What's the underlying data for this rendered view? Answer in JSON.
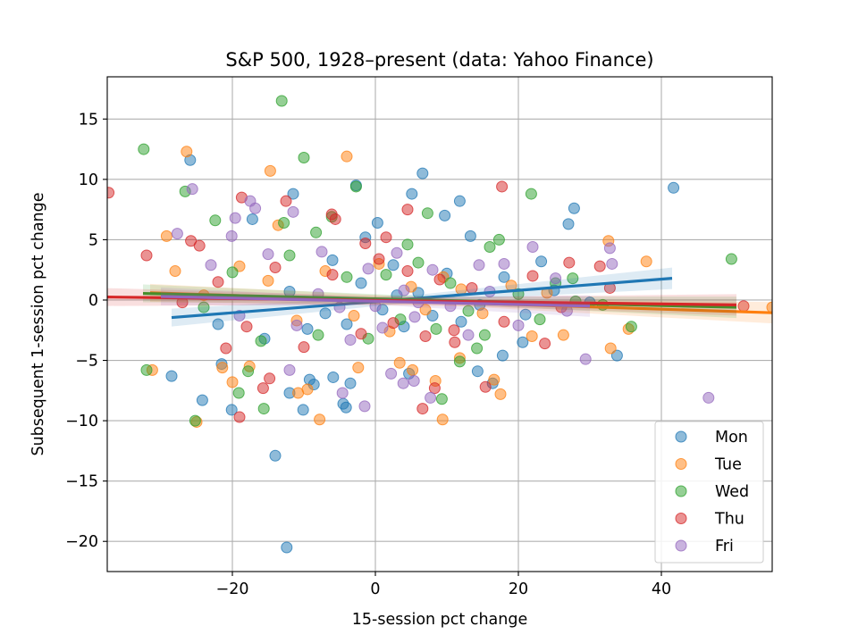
{
  "chart_data": {
    "type": "scatter",
    "title": "S&P 500, 1928–present (data: Yahoo Finance)",
    "xlabel": "15-session pct change",
    "ylabel": "Subsequent 1-session pct change",
    "xlim": [
      -37.5,
      55.5
    ],
    "ylim": [
      -22.5,
      18.5
    ],
    "xticks": [
      -20,
      0,
      20,
      40
    ],
    "yticks": [
      -20,
      -15,
      -10,
      -5,
      0,
      5,
      10,
      15
    ],
    "xtick_labels": [
      "−20",
      "0",
      "20",
      "40"
    ],
    "ytick_labels": [
      "−20",
      "−15",
      "−10",
      "−5",
      "0",
      "5",
      "10",
      "15"
    ],
    "grid": true,
    "legend_position": "lower-right",
    "series": [
      {
        "name": "Mon",
        "color": "#1f77b4",
        "regression": {
          "x": [
            -28.5,
            41.5
          ],
          "y": [
            -1.45,
            1.8
          ]
        },
        "points": [
          [
            -28.5,
            -6.3
          ],
          [
            -25.9,
            11.6
          ],
          [
            -24.2,
            -8.3
          ],
          [
            -20.1,
            -9.1
          ],
          [
            -21.5,
            -5.3
          ],
          [
            -17.2,
            6.7
          ],
          [
            -14.0,
            -12.9
          ],
          [
            -12.4,
            -20.5
          ],
          [
            -12.0,
            -7.7
          ],
          [
            -11.5,
            8.8
          ],
          [
            -10.1,
            -9.1
          ],
          [
            -9.2,
            -6.6
          ],
          [
            -8.6,
            -7.0
          ],
          [
            -5.9,
            -6.4
          ],
          [
            -4.5,
            -8.6
          ],
          [
            -4.1,
            -8.9
          ],
          [
            -3.5,
            -6.9
          ],
          [
            -2.7,
            9.5
          ],
          [
            -1.4,
            5.2
          ],
          [
            0.3,
            6.4
          ],
          [
            4.7,
            -6.1
          ],
          [
            5.1,
            8.8
          ],
          [
            6.6,
            10.5
          ],
          [
            9.7,
            7.0
          ],
          [
            11.8,
            8.2
          ],
          [
            13.3,
            5.3
          ],
          [
            14.3,
            -5.9
          ],
          [
            16.4,
            -6.9
          ],
          [
            17.8,
            -4.6
          ],
          [
            20.6,
            -3.5
          ],
          [
            23.2,
            3.2
          ],
          [
            27.0,
            6.3
          ],
          [
            27.8,
            7.6
          ],
          [
            33.8,
            -4.6
          ],
          [
            41.7,
            9.3
          ],
          [
            -15.5,
            -3.2
          ],
          [
            -9.5,
            -2.4
          ],
          [
            -6.0,
            3.3
          ],
          [
            -4.0,
            -2.0
          ],
          [
            -2.0,
            1.4
          ],
          [
            1.0,
            -0.8
          ],
          [
            2.5,
            2.9
          ],
          [
            4.0,
            -2.2
          ],
          [
            6.0,
            0.6
          ],
          [
            8.0,
            -1.3
          ],
          [
            10.0,
            2.2
          ],
          [
            12.0,
            -1.8
          ],
          [
            14.6,
            -0.4
          ],
          [
            18.0,
            1.9
          ],
          [
            21.0,
            -1.2
          ],
          [
            25.0,
            0.8
          ],
          [
            30.0,
            -0.2
          ],
          [
            -12.0,
            0.7
          ],
          [
            -7.0,
            -1.1
          ],
          [
            3.0,
            0.4
          ],
          [
            -22.0,
            -2.0
          ]
        ]
      },
      {
        "name": "Tue",
        "color": "#ff7f0e",
        "regression": {
          "x": [
            -31.5,
            55.5
          ],
          "y": [
            0.6,
            -1.05
          ]
        },
        "points": [
          [
            -31.2,
            -5.8
          ],
          [
            -29.2,
            5.3
          ],
          [
            -26.4,
            12.3
          ],
          [
            -25.0,
            -10.1
          ],
          [
            -21.4,
            -5.6
          ],
          [
            -20.0,
            -6.8
          ],
          [
            -17.6,
            -5.5
          ],
          [
            -14.7,
            10.7
          ],
          [
            -13.6,
            6.2
          ],
          [
            -10.8,
            -7.7
          ],
          [
            -9.5,
            -7.4
          ],
          [
            -7.8,
            -9.9
          ],
          [
            -4.0,
            11.9
          ],
          [
            -2.4,
            -5.6
          ],
          [
            3.4,
            -5.2
          ],
          [
            5.2,
            -5.8
          ],
          [
            8.4,
            -6.7
          ],
          [
            9.4,
            -9.9
          ],
          [
            11.8,
            -4.8
          ],
          [
            16.6,
            -6.6
          ],
          [
            17.5,
            -7.8
          ],
          [
            21.9,
            -3.0
          ],
          [
            26.3,
            -2.9
          ],
          [
            32.6,
            4.9
          ],
          [
            32.9,
            -4.0
          ],
          [
            35.4,
            -2.4
          ],
          [
            37.9,
            3.2
          ],
          [
            55.5,
            -0.6
          ],
          [
            -19.0,
            2.8
          ],
          [
            -15.0,
            1.6
          ],
          [
            -11.0,
            -1.7
          ],
          [
            -7.0,
            2.4
          ],
          [
            -3.0,
            -1.3
          ],
          [
            0.5,
            3.0
          ],
          [
            2.0,
            -2.6
          ],
          [
            5.0,
            1.1
          ],
          [
            7.0,
            -0.8
          ],
          [
            9.5,
            1.9
          ],
          [
            12.0,
            0.9
          ],
          [
            15.0,
            -1.1
          ],
          [
            19.0,
            1.2
          ],
          [
            24.0,
            0.6
          ],
          [
            -24.0,
            0.4
          ],
          [
            -28.0,
            2.4
          ]
        ]
      },
      {
        "name": "Wed",
        "color": "#2ca02c",
        "regression": {
          "x": [
            -32.5,
            50.5
          ],
          "y": [
            0.55,
            -0.6
          ]
        },
        "points": [
          [
            -32.4,
            12.5
          ],
          [
            -32.0,
            -5.8
          ],
          [
            -26.6,
            9.0
          ],
          [
            -25.2,
            -10.0
          ],
          [
            -22.4,
            6.6
          ],
          [
            -19.1,
            -7.7
          ],
          [
            -17.8,
            -5.9
          ],
          [
            -15.6,
            -9.0
          ],
          [
            -13.1,
            16.5
          ],
          [
            -12.8,
            6.4
          ],
          [
            -10.0,
            11.8
          ],
          [
            -8.3,
            5.6
          ],
          [
            -6.1,
            6.9
          ],
          [
            -2.7,
            9.4
          ],
          [
            4.5,
            4.6
          ],
          [
            7.3,
            7.2
          ],
          [
            9.3,
            -8.2
          ],
          [
            11.8,
            -5.1
          ],
          [
            14.2,
            -4.0
          ],
          [
            15.3,
            -2.9
          ],
          [
            17.3,
            5.0
          ],
          [
            21.8,
            8.8
          ],
          [
            25.2,
            1.4
          ],
          [
            27.6,
            1.8
          ],
          [
            31.8,
            -0.4
          ],
          [
            35.8,
            -2.2
          ],
          [
            49.8,
            3.4
          ],
          [
            -24.0,
            -0.6
          ],
          [
            -20.0,
            2.3
          ],
          [
            -16.0,
            -3.4
          ],
          [
            -12.0,
            3.7
          ],
          [
            -8.0,
            -2.9
          ],
          [
            -4.0,
            1.9
          ],
          [
            -1.0,
            -3.2
          ],
          [
            1.5,
            2.1
          ],
          [
            3.5,
            -1.6
          ],
          [
            6.0,
            3.1
          ],
          [
            8.5,
            -2.4
          ],
          [
            10.5,
            1.4
          ],
          [
            13.0,
            -0.9
          ],
          [
            16.0,
            4.4
          ],
          [
            20.0,
            0.5
          ],
          [
            23.0,
            -1.6
          ],
          [
            28.0,
            -0.1
          ]
        ]
      },
      {
        "name": "Thu",
        "color": "#d62728",
        "regression": {
          "x": [
            -37.5,
            50.5
          ],
          "y": [
            0.25,
            -0.4
          ]
        },
        "points": [
          [
            -37.3,
            8.9
          ],
          [
            -32.0,
            3.7
          ],
          [
            -25.8,
            4.9
          ],
          [
            -24.6,
            4.5
          ],
          [
            -20.9,
            -4.0
          ],
          [
            -19.0,
            -9.7
          ],
          [
            -18.7,
            8.5
          ],
          [
            -15.7,
            -7.3
          ],
          [
            -14.8,
            -6.5
          ],
          [
            -12.5,
            8.2
          ],
          [
            -6.1,
            7.1
          ],
          [
            -5.6,
            6.7
          ],
          [
            -1.4,
            4.7
          ],
          [
            1.5,
            5.2
          ],
          [
            4.5,
            7.5
          ],
          [
            6.6,
            -9.0
          ],
          [
            8.3,
            -7.3
          ],
          [
            11.1,
            -3.5
          ],
          [
            15.4,
            -7.2
          ],
          [
            17.7,
            9.4
          ],
          [
            23.7,
            -3.6
          ],
          [
            27.1,
            3.1
          ],
          [
            31.4,
            2.8
          ],
          [
            32.8,
            1.0
          ],
          [
            51.5,
            -0.5
          ],
          [
            -22.0,
            1.5
          ],
          [
            -18.0,
            -2.2
          ],
          [
            -14.0,
            2.7
          ],
          [
            -10.0,
            -3.9
          ],
          [
            -6.0,
            2.1
          ],
          [
            -2.0,
            -2.8
          ],
          [
            0.5,
            3.4
          ],
          [
            2.5,
            -1.9
          ],
          [
            4.5,
            2.4
          ],
          [
            7.0,
            -3.0
          ],
          [
            9.0,
            1.7
          ],
          [
            11.0,
            -2.5
          ],
          [
            13.5,
            1.0
          ],
          [
            18.0,
            -1.8
          ],
          [
            22.0,
            2.0
          ],
          [
            26.0,
            -0.6
          ],
          [
            -27.0,
            -0.2
          ]
        ]
      },
      {
        "name": "Fri",
        "color": "#9467bd",
        "regression": {
          "x": [
            -30,
            30
          ],
          "y": [
            0.3,
            -0.5
          ]
        },
        "points": [
          [
            -27.7,
            5.5
          ],
          [
            -25.6,
            9.2
          ],
          [
            -19.6,
            6.8
          ],
          [
            -20.1,
            5.3
          ],
          [
            -17.5,
            8.2
          ],
          [
            -16.8,
            7.6
          ],
          [
            -12.0,
            -5.8
          ],
          [
            -11.5,
            7.3
          ],
          [
            -4.6,
            -7.7
          ],
          [
            -1.5,
            -8.8
          ],
          [
            2.2,
            -6.1
          ],
          [
            3.9,
            -6.9
          ],
          [
            5.4,
            -6.7
          ],
          [
            7.7,
            -8.1
          ],
          [
            14.5,
            2.9
          ],
          [
            18.0,
            3.0
          ],
          [
            22.0,
            4.4
          ],
          [
            25.2,
            1.8
          ],
          [
            26.8,
            -0.9
          ],
          [
            29.4,
            -4.9
          ],
          [
            32.8,
            4.3
          ],
          [
            33.1,
            3.0
          ],
          [
            46.6,
            -8.1
          ],
          [
            -23.0,
            2.9
          ],
          [
            -19.0,
            -1.3
          ],
          [
            -15.0,
            3.8
          ],
          [
            -11.0,
            -2.1
          ],
          [
            -7.5,
            4.0
          ],
          [
            -3.5,
            -3.3
          ],
          [
            -1.0,
            2.6
          ],
          [
            1.0,
            -2.3
          ],
          [
            3.0,
            3.9
          ],
          [
            5.5,
            -1.4
          ],
          [
            8.0,
            2.5
          ],
          [
            10.5,
            -0.5
          ],
          [
            13.0,
            -2.9
          ],
          [
            16.0,
            0.7
          ],
          [
            20.0,
            -2.1
          ],
          [
            -8.0,
            0.5
          ],
          [
            0.0,
            -0.5
          ],
          [
            4.0,
            0.8
          ],
          [
            -5.0,
            -0.6
          ],
          [
            6.0,
            -0.2
          ]
        ]
      }
    ]
  }
}
